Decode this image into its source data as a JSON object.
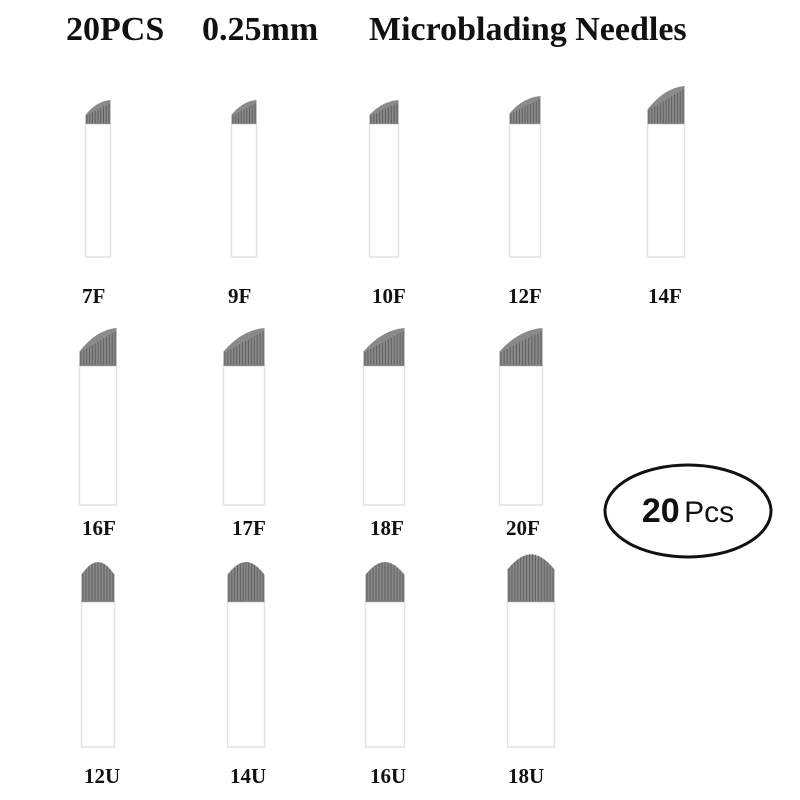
{
  "title": {
    "count": "20PCS",
    "size": "0.25mm",
    "name": "Microblading Needles"
  },
  "needles": [
    {
      "label": "7F",
      "kind": "F"
    },
    {
      "label": "9F",
      "kind": "F"
    },
    {
      "label": "10F",
      "kind": "F"
    },
    {
      "label": "12F",
      "kind": "F"
    },
    {
      "label": "14F",
      "kind": "F"
    },
    {
      "label": "16F",
      "kind": "F"
    },
    {
      "label": "17F",
      "kind": "F"
    },
    {
      "label": "18F",
      "kind": "F"
    },
    {
      "label": "20F",
      "kind": "F"
    },
    {
      "label": "12U",
      "kind": "U"
    },
    {
      "label": "14U",
      "kind": "U"
    },
    {
      "label": "16U",
      "kind": "U"
    },
    {
      "label": "18U",
      "kind": "U"
    }
  ],
  "badge": {
    "number": "20",
    "unit": "Pcs"
  },
  "colors": {
    "blade": "#8a8a8a",
    "blade_dark": "#5e5e5e",
    "handle": "#ffffff",
    "handle_border": "#e2e2e2",
    "text": "#111111"
  }
}
